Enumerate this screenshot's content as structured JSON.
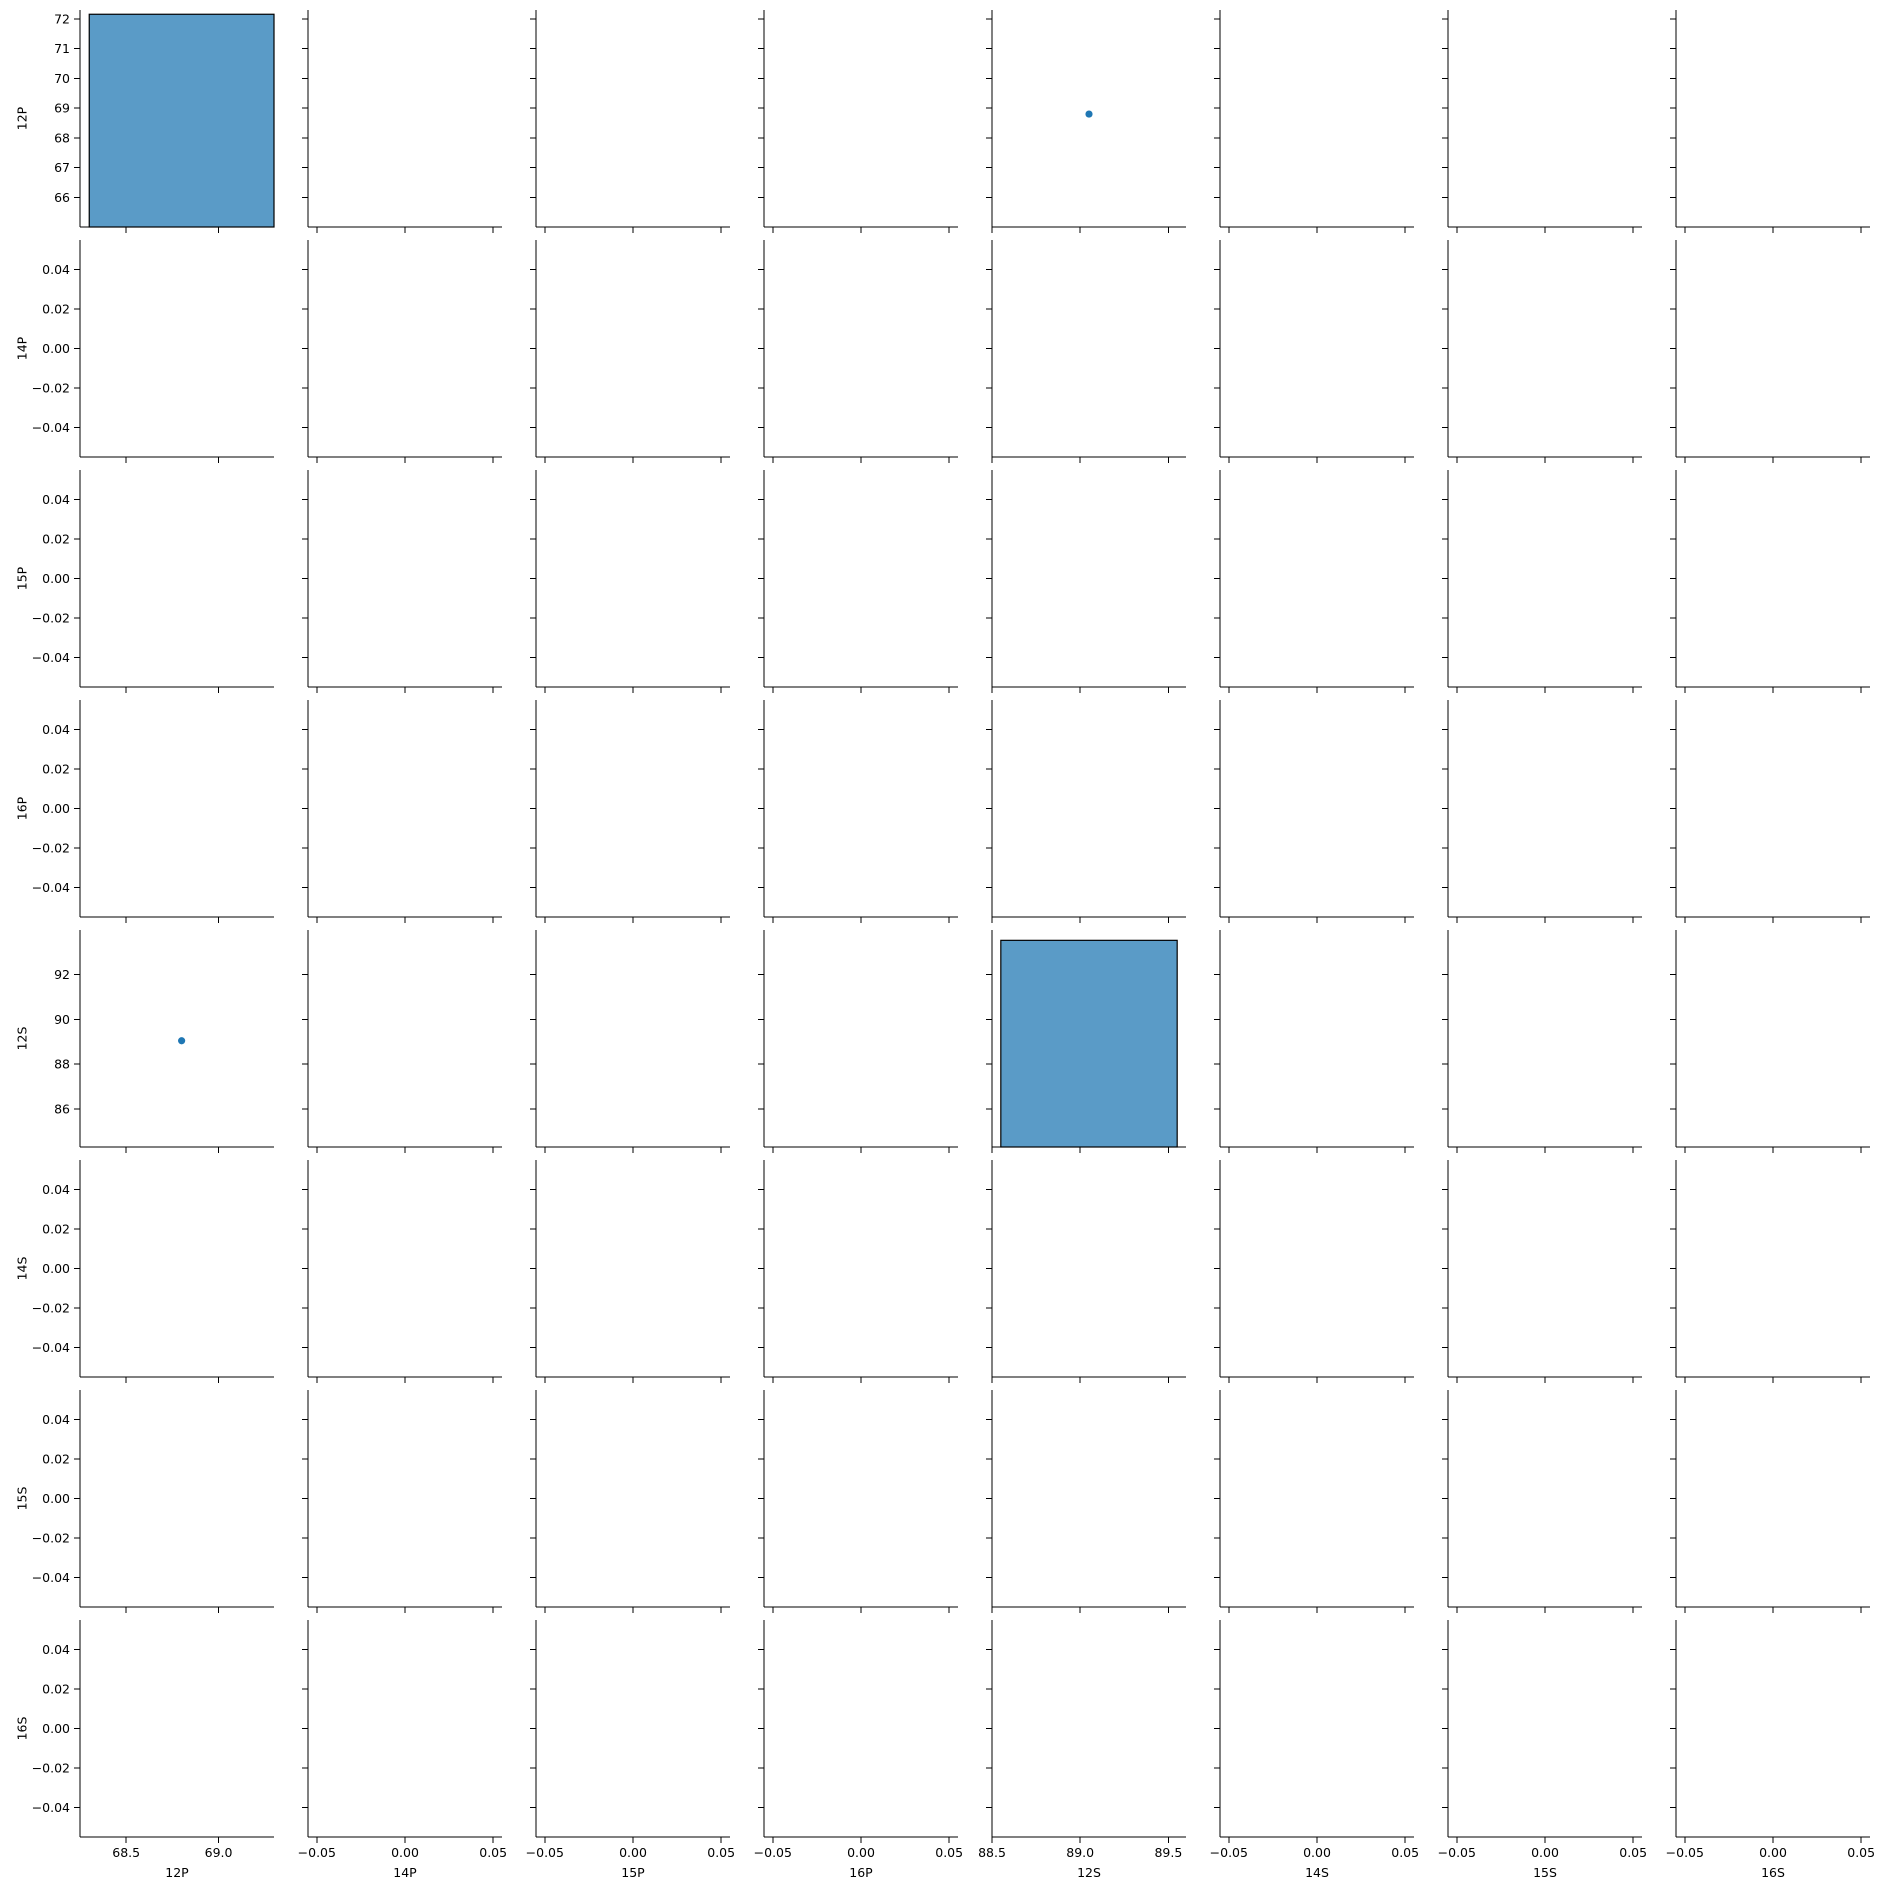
{
  "chart_data": {
    "type": "pairplot",
    "variables": [
      "12P",
      "14P",
      "15P",
      "16P",
      "12S",
      "14S",
      "15S",
      "16S"
    ],
    "colors": {
      "mark": "#1f77b4",
      "bar_fill": "#5a9bc7",
      "bar_edge": "#000000"
    },
    "axes": {
      "12P": {
        "range": [
          68.25,
          69.3
        ],
        "ticks": [
          68.5,
          69.0
        ],
        "tick_labels": [
          "68.5",
          "69.0"
        ]
      },
      "14P": {
        "range": [
          -0.055,
          0.055
        ],
        "ticks": [
          -0.05,
          0.0,
          0.05
        ],
        "tick_labels": [
          "−0.05",
          "0.00",
          "0.05"
        ]
      },
      "15P": {
        "range": [
          -0.055,
          0.055
        ],
        "ticks": [
          -0.05,
          0.0,
          0.05
        ],
        "tick_labels": [
          "−0.05",
          "0.00",
          "0.05"
        ]
      },
      "16P": {
        "range": [
          -0.055,
          0.055
        ],
        "ticks": [
          -0.05,
          0.0,
          0.05
        ],
        "tick_labels": [
          "−0.05",
          "0.00",
          "0.05"
        ]
      },
      "12S": {
        "range": [
          88.5,
          89.6
        ],
        "ticks": [
          88.5,
          89.0,
          89.5
        ],
        "tick_labels": [
          "88.5",
          "89.0",
          "89.5"
        ]
      },
      "14S": {
        "range": [
          -0.055,
          0.055
        ],
        "ticks": [
          -0.05,
          0.0,
          0.05
        ],
        "tick_labels": [
          "−0.05",
          "0.00",
          "0.05"
        ]
      },
      "15S": {
        "range": [
          -0.055,
          0.055
        ],
        "ticks": [
          -0.05,
          0.0,
          0.05
        ],
        "tick_labels": [
          "−0.05",
          "0.00",
          "0.05"
        ]
      },
      "16S": {
        "range": [
          -0.055,
          0.055
        ],
        "ticks": [
          -0.05,
          0.0,
          0.05
        ],
        "tick_labels": [
          "−0.05",
          "0.00",
          "0.05"
        ]
      }
    },
    "row_axes": {
      "12P": {
        "range": [
          65.0,
          72.3
        ],
        "ticks": [
          66,
          67,
          68,
          69,
          70,
          71,
          72
        ],
        "tick_labels": [
          "66",
          "67",
          "68",
          "69",
          "70",
          "71",
          "72"
        ]
      },
      "14P": {
        "range": [
          -0.055,
          0.055
        ],
        "ticks": [
          -0.04,
          -0.02,
          0.0,
          0.02,
          0.04
        ],
        "tick_labels": [
          "−0.04",
          "−0.02",
          "0.00",
          "0.02",
          "0.04"
        ]
      },
      "15P": {
        "range": [
          -0.055,
          0.055
        ],
        "ticks": [
          -0.04,
          -0.02,
          0.0,
          0.02,
          0.04
        ],
        "tick_labels": [
          "−0.04",
          "−0.02",
          "0.00",
          "0.02",
          "0.04"
        ]
      },
      "16P": {
        "range": [
          -0.055,
          0.055
        ],
        "ticks": [
          -0.04,
          -0.02,
          0.0,
          0.02,
          0.04
        ],
        "tick_labels": [
          "−0.04",
          "−0.02",
          "0.00",
          "0.02",
          "0.04"
        ]
      },
      "12S": {
        "range": [
          84.3,
          94.0
        ],
        "ticks": [
          86,
          88,
          90,
          92
        ],
        "tick_labels": [
          "86",
          "88",
          "90",
          "92"
        ]
      },
      "14S": {
        "range": [
          -0.055,
          0.055
        ],
        "ticks": [
          -0.04,
          -0.02,
          0.0,
          0.02,
          0.04
        ],
        "tick_labels": [
          "−0.04",
          "−0.02",
          "0.00",
          "0.02",
          "0.04"
        ]
      },
      "15S": {
        "range": [
          -0.055,
          0.055
        ],
        "ticks": [
          -0.04,
          -0.02,
          0.0,
          0.02,
          0.04
        ],
        "tick_labels": [
          "−0.04",
          "−0.02",
          "0.00",
          "0.02",
          "0.04"
        ]
      },
      "16S": {
        "range": [
          -0.055,
          0.055
        ],
        "ticks": [
          -0.04,
          -0.02,
          0.0,
          0.02,
          0.04
        ],
        "tick_labels": [
          "−0.04",
          "−0.02",
          "0.00",
          "0.02",
          "0.04"
        ]
      }
    },
    "histograms": [
      {
        "variable": "12P",
        "bin_start": 68.3,
        "bin_end": 69.3,
        "count": 1,
        "count_range": [
          0,
          1.02
        ]
      },
      {
        "variable": "12S",
        "bin_start": 88.55,
        "bin_end": 89.55,
        "count": 1,
        "count_range": [
          0,
          1.05
        ]
      }
    ],
    "scatter_points": [
      {
        "x_var": "12S",
        "y_var": "12P",
        "x": 89.05,
        "y": 68.8
      },
      {
        "x_var": "12P",
        "y_var": "12S",
        "x": 68.8,
        "y": 89.05
      }
    ]
  }
}
